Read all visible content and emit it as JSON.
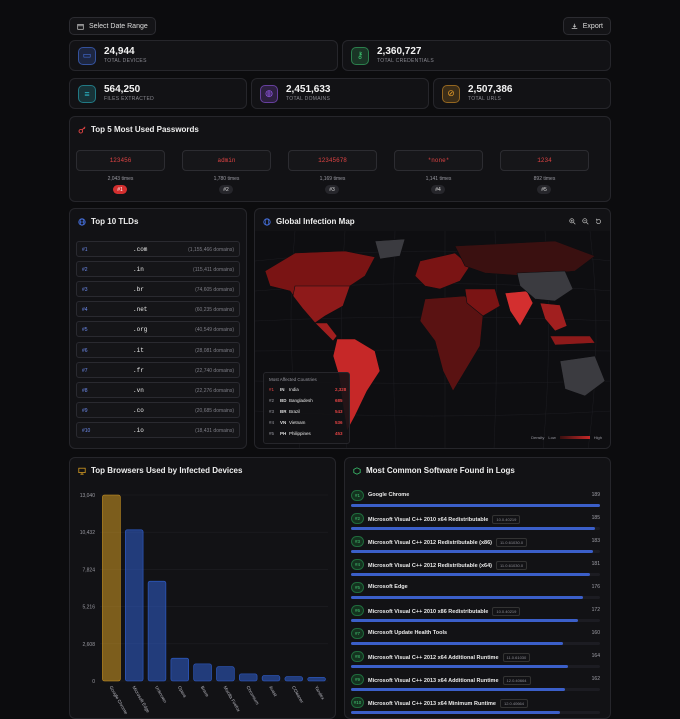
{
  "toolbar": {
    "date_label": "Select Date Range",
    "export_label": "Export"
  },
  "stats": [
    {
      "value": "24,944",
      "label": "TOTAL DEVICES",
      "icon": "device-icon",
      "color": "#4a79f0"
    },
    {
      "value": "2,360,727",
      "label": "TOTAL CREDENTIALS",
      "icon": "key-icon",
      "color": "#3cc26e"
    },
    {
      "value": "564,250",
      "label": "FILES EXTRACTED",
      "icon": "database-icon",
      "color": "#2bb8c9"
    },
    {
      "value": "2,451,633",
      "label": "TOTAL DOMAINS",
      "icon": "globe-icon",
      "color": "#9a5cf2"
    },
    {
      "value": "2,507,386",
      "label": "TOTAL URLS",
      "icon": "link-icon",
      "color": "#e39a2a"
    }
  ],
  "passwords": {
    "title": "Top 5 Most Used Passwords",
    "items": [
      {
        "pw": "123456",
        "times": "2,043 times",
        "rank": "#1"
      },
      {
        "pw": "admin",
        "times": "1,780 times",
        "rank": "#2"
      },
      {
        "pw": "12345678",
        "times": "1,169 times",
        "rank": "#3"
      },
      {
        "pw": "*none*",
        "times": "1,141 times",
        "rank": "#4"
      },
      {
        "pw": "1234",
        "times": "892 times",
        "rank": "#5"
      }
    ]
  },
  "tlds": {
    "title": "Top 10 TLDs",
    "items": [
      {
        "rank": "#1",
        "name": ".com",
        "count": "(1,155,466 domains)"
      },
      {
        "rank": "#2",
        "name": ".in",
        "count": "(115,411 domains)"
      },
      {
        "rank": "#3",
        "name": ".br",
        "count": "(74,605 domains)"
      },
      {
        "rank": "#4",
        "name": ".net",
        "count": "(60,235 domains)"
      },
      {
        "rank": "#5",
        "name": ".org",
        "count": "(40,549 domains)"
      },
      {
        "rank": "#6",
        "name": ".it",
        "count": "(28,081 domains)"
      },
      {
        "rank": "#7",
        "name": ".fr",
        "count": "(22,740 domains)"
      },
      {
        "rank": "#8",
        "name": ".vn",
        "count": "(22,276 domains)"
      },
      {
        "rank": "#9",
        "name": ".co",
        "count": "(20,685 domains)"
      },
      {
        "rank": "#10",
        "name": ".io",
        "count": "(18,431 domains)"
      }
    ]
  },
  "map": {
    "title": "Global Infection Map",
    "affected_title": "Most Affected Countries",
    "countries": [
      {
        "rank": "#1",
        "code": "IN",
        "name": "India",
        "count": "2,328"
      },
      {
        "rank": "#2",
        "code": "BD",
        "name": "Bangladesh",
        "count": "685"
      },
      {
        "rank": "#3",
        "code": "BR",
        "name": "Brazil",
        "count": "543"
      },
      {
        "rank": "#4",
        "code": "VN",
        "name": "Vietnam",
        "count": "536"
      },
      {
        "rank": "#5",
        "code": "PH",
        "name": "Philippines",
        "count": "453"
      }
    ],
    "density_label": "Density",
    "low": "Low",
    "high": "High",
    "colors": {
      "high": "#c62828",
      "mid": "#7a1414",
      "low": "#3a1010",
      "none": "#3b3b40"
    }
  },
  "browsers": {
    "title": "Top Browsers Used by Infected Devices",
    "chart_data": {
      "type": "bar",
      "categories": [
        "Google Chrome",
        "Microsoft Edge",
        "Unknown",
        "Opera",
        "Brave",
        "Mozilla Firefox",
        "Chromium",
        "Avast",
        "CCleaner",
        "Yandex"
      ],
      "values": [
        13040,
        10600,
        7000,
        1600,
        1200,
        1000,
        500,
        380,
        300,
        250
      ],
      "yticks": [
        "13,040",
        "10,432",
        "7,824",
        "5,216",
        "2,608",
        "0"
      ],
      "ylim": [
        0,
        13040
      ],
      "colors": {
        "first": "#d49a22",
        "rest": "#2f5fd0"
      }
    },
    "labels": [
      "Google Chrome",
      "Microsoft Edge",
      "Unknown",
      "Opera",
      "Brave",
      "Mozilla Firefox",
      "Chromium",
      "Avast",
      "CCleaner",
      "Yandex"
    ]
  },
  "software": {
    "title": "Most Common Software Found in Logs",
    "items": [
      {
        "rank": "#1",
        "name": "Google Chrome",
        "version": "",
        "count": "189",
        "pct": 1.0
      },
      {
        "rank": "#2",
        "name": "Microsoft Visual C++ 2010 x64 Redistributable",
        "version": "10.0.40219",
        "count": "185",
        "pct": 0.98
      },
      {
        "rank": "#3",
        "name": "Microsoft Visual C++ 2012 Redistributable (x86)",
        "version": "11.0.61030.0",
        "count": "183",
        "pct": 0.97
      },
      {
        "rank": "#4",
        "name": "Microsoft Visual C++ 2012 Redistributable (x64)",
        "version": "11.0.61030.0",
        "count": "181",
        "pct": 0.96
      },
      {
        "rank": "#5",
        "name": "Microsoft Edge",
        "version": "",
        "count": "176",
        "pct": 0.93
      },
      {
        "rank": "#6",
        "name": "Microsoft Visual C++ 2010 x86 Redistributable",
        "version": "10.0.40219",
        "count": "172",
        "pct": 0.91
      },
      {
        "rank": "#7",
        "name": "Microsoft Update Health Tools",
        "version": "",
        "count": "160",
        "pct": 0.85
      },
      {
        "rank": "#8",
        "name": "Microsoft Visual C++ 2012 x64 Additional Runtime",
        "version": "11.0.61030",
        "count": "164",
        "pct": 0.87
      },
      {
        "rank": "#9",
        "name": "Microsoft Visual C++ 2013 x64 Additional Runtime",
        "version": "12.0.40664",
        "count": "162",
        "pct": 0.86
      },
      {
        "rank": "#10",
        "name": "Microsoft Visual C++ 2013 x64 Minimum Runtime",
        "version": "12.0.40664",
        "count": "",
        "pct": 0.84
      }
    ]
  }
}
